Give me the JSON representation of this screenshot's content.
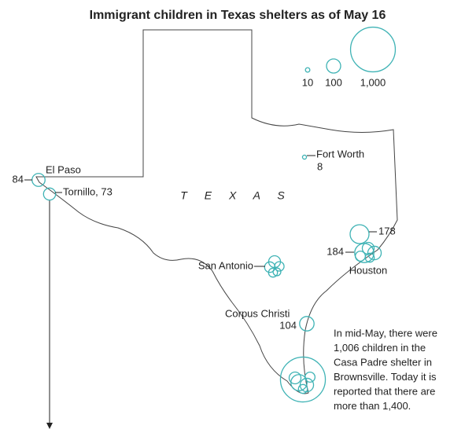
{
  "title": "Immigrant children in Texas shelters as of May 16",
  "legend": [
    {
      "value": 10,
      "label": "10"
    },
    {
      "value": 100,
      "label": "100"
    },
    {
      "value": 1000,
      "label": "1,000"
    }
  ],
  "state_label": "T E X A S",
  "places": [
    {
      "name": "El Paso",
      "count": 84
    },
    {
      "label": "Tornillo, 73",
      "count": 73
    },
    {
      "name": "Fort Worth",
      "count": 8
    },
    {
      "name": "San Antonio",
      "shelters": [
        70,
        55,
        45,
        40,
        30
      ]
    },
    {
      "name": "Houston",
      "shelters": [
        178,
        184,
        90,
        70,
        50,
        40
      ]
    },
    {
      "name": "Corpus Christi",
      "count": 104
    }
  ],
  "brownsville_shelters": [
    1006,
    130,
    90,
    70,
    50,
    40
  ],
  "annotation": [
    "In mid-May, there were",
    "1,006 children in the",
    "Casa Padre shelter in",
    "Brownsville. Today it is",
    "reported that there are",
    "more than 1,400."
  ]
}
